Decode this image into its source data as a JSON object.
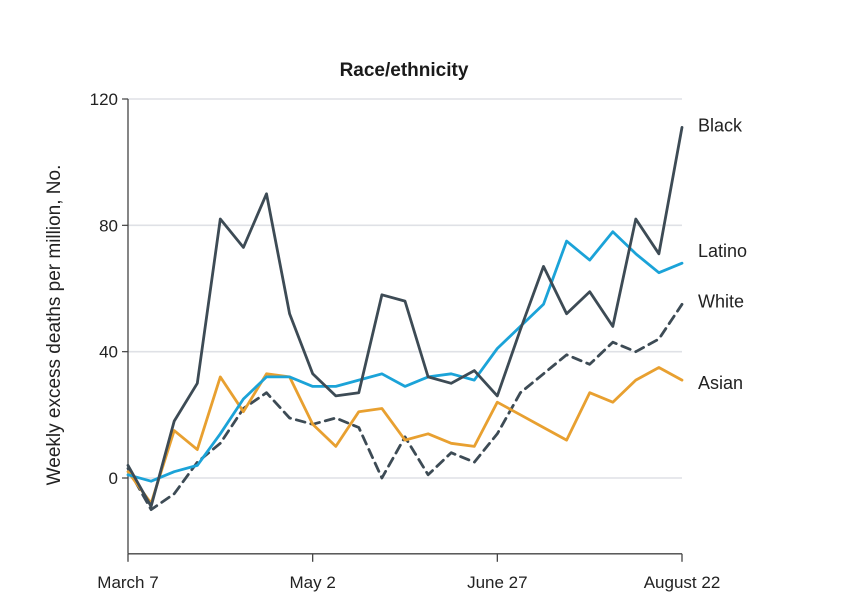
{
  "chart_data": {
    "type": "line",
    "title": "Race/ethnicity",
    "ylabel": "Weekly excess deaths per million, No.",
    "xlabel": "",
    "ylim": [
      -24,
      120
    ],
    "yticks": [
      0,
      40,
      80,
      120
    ],
    "xticks": [
      {
        "week": 0,
        "label": "March 7"
      },
      {
        "week": 8,
        "label": "May 2"
      },
      {
        "week": 16,
        "label": "June 27"
      },
      {
        "week": 24,
        "label": "August 22"
      }
    ],
    "grid": true,
    "x": [
      0,
      1,
      2,
      3,
      4,
      5,
      6,
      7,
      8,
      9,
      10,
      11,
      12,
      13,
      14,
      15,
      16,
      17,
      18,
      19,
      20,
      21,
      22,
      23,
      24
    ],
    "series": [
      {
        "name": "Black",
        "color": "#3d4b55",
        "dash": "solid",
        "values": [
          4,
          -9,
          18,
          30,
          82,
          73,
          90,
          52,
          33,
          26,
          27,
          58,
          56,
          32,
          30,
          34,
          26,
          47,
          67,
          52,
          59,
          48,
          82,
          71,
          111
        ]
      },
      {
        "name": "Latino",
        "color": "#1ba3d8",
        "dash": "solid",
        "values": [
          1,
          -1,
          2,
          4,
          14,
          25,
          32,
          32,
          29,
          29,
          31,
          33,
          29,
          32,
          33,
          31,
          41,
          48,
          55,
          75,
          69,
          78,
          71,
          65,
          68
        ]
      },
      {
        "name": "White",
        "color": "#3d4b55",
        "dash": "dashed",
        "values": [
          3,
          -10,
          -5,
          5,
          11,
          22,
          27,
          19,
          17,
          19,
          16,
          0,
          13,
          1,
          8,
          5,
          14,
          27,
          33,
          39,
          36,
          43,
          40,
          44,
          55
        ]
      },
      {
        "name": "Asian",
        "color": "#e8a030",
        "dash": "solid",
        "values": [
          2,
          -8,
          15,
          9,
          32,
          21,
          33,
          32,
          17,
          10,
          21,
          22,
          12,
          14,
          11,
          10,
          24,
          20,
          16,
          12,
          27,
          24,
          31,
          35,
          31
        ]
      }
    ]
  }
}
